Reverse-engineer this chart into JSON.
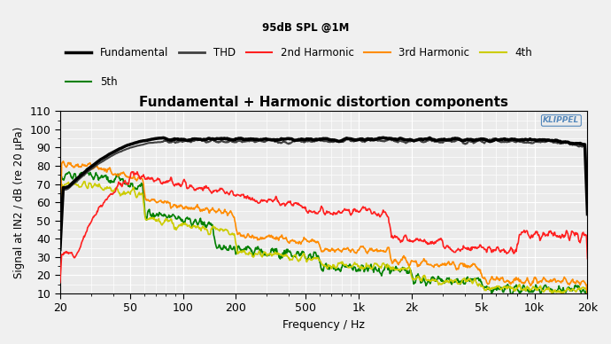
{
  "title": "Fundamental + Harmonic distortion components",
  "subtitle": "95dB SPL @1M",
  "ylabel": "Signal at IN2 / dB (re 20 μPa)",
  "xlabel": "Frequency / Hz",
  "ylim": [
    10,
    110
  ],
  "yticks": [
    10,
    20,
    30,
    40,
    50,
    60,
    70,
    80,
    90,
    100,
    110
  ],
  "bg_color": "#ebebeb",
  "grid_color": "#ffffff",
  "fund_color": "#000000",
  "thd_color": "#404040",
  "h2_color": "#ff2020",
  "h3_color": "#ff8c00",
  "h4_color": "#cccc00",
  "h5_color": "#008000",
  "klippel_color": "#5588bb",
  "fig_bg": "#f0f0f0"
}
